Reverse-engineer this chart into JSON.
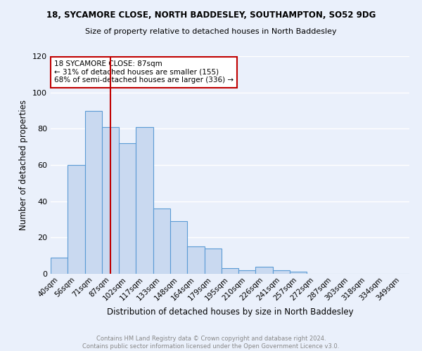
{
  "title1": "18, SYCAMORE CLOSE, NORTH BADDESLEY, SOUTHAMPTON, SO52 9DG",
  "title2": "Size of property relative to detached houses in North Baddesley",
  "xlabel": "Distribution of detached houses by size in North Baddesley",
  "ylabel": "Number of detached properties",
  "categories": [
    "40sqm",
    "56sqm",
    "71sqm",
    "87sqm",
    "102sqm",
    "117sqm",
    "133sqm",
    "148sqm",
    "164sqm",
    "179sqm",
    "195sqm",
    "210sqm",
    "226sqm",
    "241sqm",
    "257sqm",
    "272sqm",
    "287sqm",
    "303sqm",
    "318sqm",
    "334sqm",
    "349sqm"
  ],
  "values": [
    9,
    60,
    90,
    81,
    72,
    81,
    36,
    29,
    15,
    14,
    3,
    2,
    4,
    2,
    1,
    0,
    0,
    0,
    0,
    0,
    0
  ],
  "bar_color": "#c9d9f0",
  "bar_edge_color": "#5b9bd5",
  "property_index": 3,
  "vline_color": "#c00000",
  "annotation_text": "18 SYCAMORE CLOSE: 87sqm\n← 31% of detached houses are smaller (155)\n68% of semi-detached houses are larger (336) →",
  "annotation_box_color": "#ffffff",
  "annotation_box_edge": "#c00000",
  "ylim": [
    0,
    120
  ],
  "yticks": [
    0,
    20,
    40,
    60,
    80,
    100,
    120
  ],
  "footnote": "Contains HM Land Registry data © Crown copyright and database right 2024.\nContains public sector information licensed under the Open Government Licence v3.0.",
  "bg_color": "#eaf0fb",
  "grid_color": "#ffffff"
}
